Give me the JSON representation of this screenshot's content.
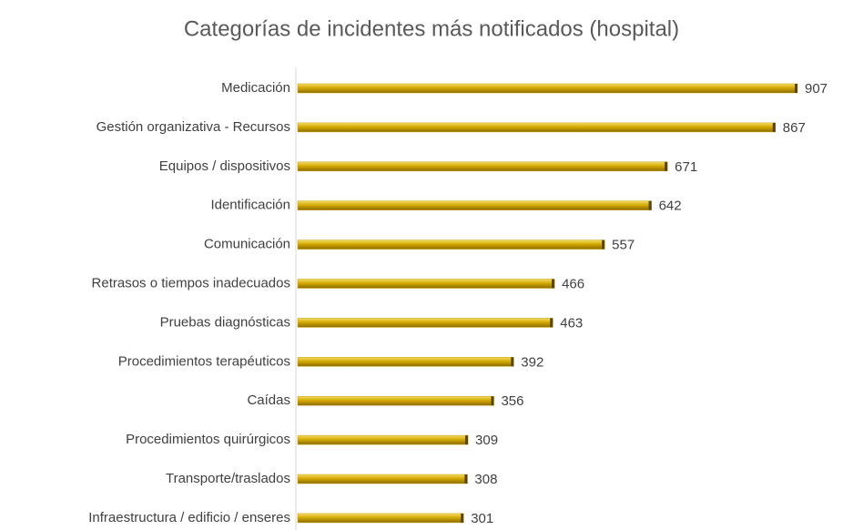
{
  "chart_data": {
    "type": "bar",
    "orientation": "horizontal",
    "title": "Categorías de incidentes más notificados (hospital)",
    "categories": [
      "Medicación",
      "Gestión organizativa - Recursos",
      "Equipos / dispositivos",
      "Identificación",
      "Comunicación",
      "Retrasos o tiempos inadecuados",
      "Pruebas diagnósticas",
      "Procedimientos terapéuticos",
      "Caídas",
      "Procedimientos quirúrgicos",
      "Transporte/traslados",
      "Infraestructura / edificio / enseres"
    ],
    "values": [
      907,
      867,
      671,
      642,
      557,
      466,
      463,
      392,
      356,
      309,
      308,
      301
    ],
    "color": "#c9a000"
  }
}
